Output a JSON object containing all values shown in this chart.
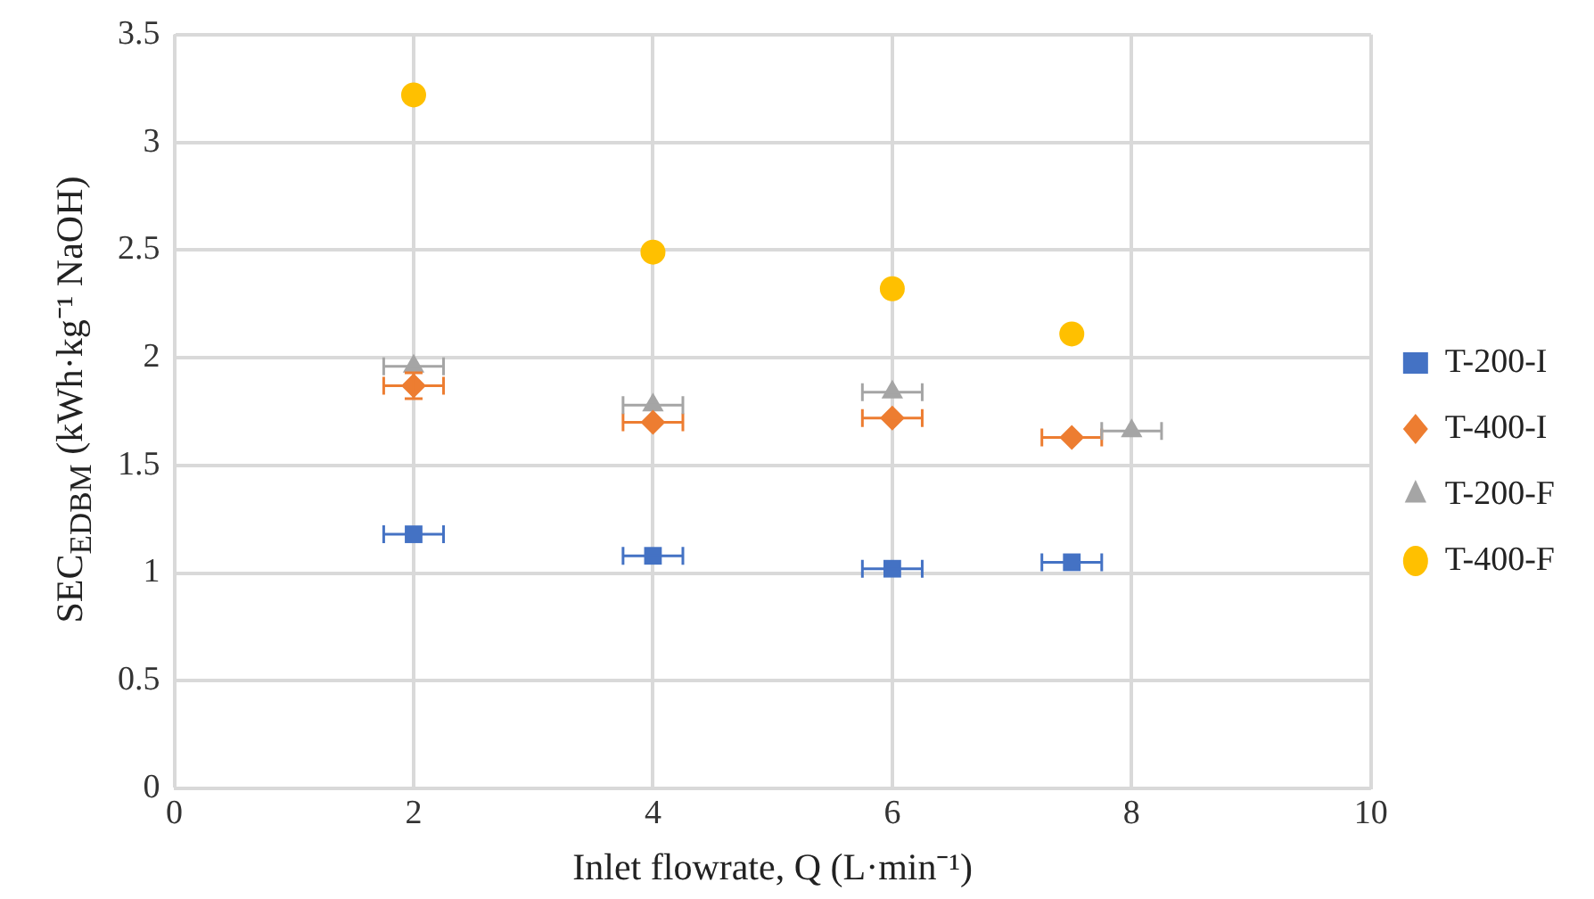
{
  "chart_data": {
    "type": "scatter",
    "xlabel": "Inlet flowrate, Q (L·min⁻¹)",
    "ylabel": "SEC$_{EDBM}$ (kWh·kg⁻¹ NaOH)",
    "xlim": [
      0,
      10
    ],
    "xticks": [
      0,
      2,
      4,
      6,
      8,
      10
    ],
    "ylim": [
      0,
      3.5
    ],
    "yticks": [
      0,
      0.5,
      1,
      1.5,
      2,
      2.5,
      3,
      3.5
    ],
    "grid": true,
    "legend": "right",
    "series": [
      {
        "name": "T-200-I",
        "color": "#4472c4",
        "marker": "square",
        "x": [
          2,
          4,
          6,
          7.5
        ],
        "values": [
          1.18,
          1.08,
          1.02,
          1.05
        ],
        "xerrors": [
          0.25,
          0.25,
          0.25,
          0.25
        ]
      },
      {
        "name": "T-400-I",
        "color": "#ed7d31",
        "marker": "diamond",
        "x": [
          2,
          4,
          6,
          7.5
        ],
        "values": [
          1.87,
          1.7,
          1.72,
          1.63
        ],
        "xerrors": [
          0.25,
          0.25,
          0.25,
          0.25
        ],
        "errors": [
          0.06,
          null,
          null,
          null
        ]
      },
      {
        "name": "T-200-F",
        "color": "#a5a5a5",
        "marker": "triangle",
        "x": [
          2,
          4,
          6,
          8
        ],
        "values": [
          1.96,
          1.78,
          1.84,
          1.66
        ],
        "xerrors": [
          0.25,
          0.25,
          0.25,
          0.25
        ]
      },
      {
        "name": "T-400-F",
        "color": "#ffc000",
        "marker": "circle",
        "x": [
          2,
          4,
          6,
          7.5
        ],
        "values": [
          3.22,
          2.49,
          2.32,
          2.11
        ]
      }
    ]
  }
}
